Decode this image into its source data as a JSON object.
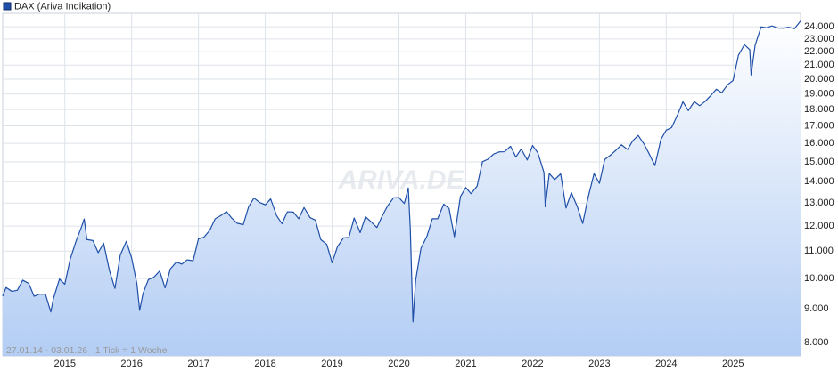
{
  "chart_data": {
    "type": "line",
    "legend": "DAX (Ariva Indikation)",
    "watermark": "ARIVA.DE",
    "footnote": "27.01.14 - 03.01.26   1 Tick = 1 Woche",
    "log_scale": true,
    "grid": true,
    "color": "#1f4fa8",
    "xlim": [
      2014.07,
      2026.01
    ],
    "xticks": [
      2015,
      2016,
      2017,
      2018,
      2019,
      2020,
      2021,
      2022,
      2023,
      2024,
      2025
    ],
    "ylim": [
      7640,
      25150
    ],
    "yticks": [
      {
        "value": 8000,
        "label": "8.000"
      },
      {
        "value": 9000,
        "label": "9.000"
      },
      {
        "value": 10000,
        "label": "10.000"
      },
      {
        "value": 11000,
        "label": "11.000"
      },
      {
        "value": 12000,
        "label": "12.000"
      },
      {
        "value": 13000,
        "label": "13.000"
      },
      {
        "value": 14000,
        "label": "14.000"
      },
      {
        "value": 15000,
        "label": "15.000"
      },
      {
        "value": 16000,
        "label": "16.000"
      },
      {
        "value": 17000,
        "label": "17.000"
      },
      {
        "value": 18000,
        "label": "18.000"
      },
      {
        "value": 19000,
        "label": "19.000"
      },
      {
        "value": 20000,
        "label": "20.000"
      },
      {
        "value": 21000,
        "label": "21.000"
      },
      {
        "value": 22000,
        "label": "22.000"
      },
      {
        "value": 23000,
        "label": "23.000"
      },
      {
        "value": 24000,
        "label": "24.000"
      }
    ],
    "x": [
      2014.07,
      2014.12,
      2014.21,
      2014.29,
      2014.37,
      2014.46,
      2014.54,
      2014.62,
      2014.71,
      2014.79,
      2014.83,
      2014.92,
      2015.0,
      2015.08,
      2015.17,
      2015.25,
      2015.29,
      2015.33,
      2015.42,
      2015.5,
      2015.58,
      2015.67,
      2015.75,
      2015.83,
      2015.92,
      2016.0,
      2016.08,
      2016.12,
      2016.17,
      2016.25,
      2016.33,
      2016.42,
      2016.5,
      2016.58,
      2016.67,
      2016.75,
      2016.83,
      2016.92,
      2017.0,
      2017.08,
      2017.17,
      2017.25,
      2017.33,
      2017.42,
      2017.5,
      2017.58,
      2017.67,
      2017.75,
      2017.83,
      2017.92,
      2018.0,
      2018.08,
      2018.17,
      2018.25,
      2018.33,
      2018.42,
      2018.5,
      2018.58,
      2018.67,
      2018.75,
      2018.83,
      2018.92,
      2019.0,
      2019.08,
      2019.17,
      2019.25,
      2019.33,
      2019.42,
      2019.5,
      2019.58,
      2019.67,
      2019.75,
      2019.83,
      2019.92,
      2020.0,
      2020.08,
      2020.14,
      2020.17,
      2020.21,
      2020.25,
      2020.33,
      2020.42,
      2020.5,
      2020.58,
      2020.67,
      2020.75,
      2020.83,
      2020.92,
      2021.0,
      2021.08,
      2021.17,
      2021.25,
      2021.33,
      2021.42,
      2021.5,
      2021.58,
      2021.67,
      2021.75,
      2021.83,
      2021.92,
      2022.0,
      2022.08,
      2022.17,
      2022.19,
      2022.25,
      2022.33,
      2022.42,
      2022.5,
      2022.58,
      2022.67,
      2022.75,
      2022.83,
      2022.92,
      2023.0,
      2023.08,
      2023.17,
      2023.25,
      2023.33,
      2023.42,
      2023.5,
      2023.58,
      2023.67,
      2023.75,
      2023.83,
      2023.92,
      2024.0,
      2024.08,
      2024.17,
      2024.25,
      2024.33,
      2024.42,
      2024.5,
      2024.58,
      2024.67,
      2024.75,
      2024.83,
      2024.92,
      2025.0,
      2025.08,
      2025.17,
      2025.25,
      2025.27,
      2025.33,
      2025.42,
      2025.5,
      2025.58,
      2025.67,
      2025.75,
      2025.83,
      2025.92,
      2026.01
    ],
    "values": [
      9400,
      9690,
      9560,
      9600,
      9940,
      9830,
      9400,
      9470,
      9470,
      8900,
      9330,
      9980,
      9800,
      10690,
      11400,
      11970,
      12300,
      11450,
      11410,
      10940,
      11310,
      10260,
      9660,
      10850,
      11380,
      10740,
      9800,
      8950,
      9490,
      9960,
      10040,
      10260,
      9680,
      10340,
      10590,
      10510,
      10670,
      10640,
      11480,
      11540,
      11830,
      12310,
      12440,
      12620,
      12330,
      12120,
      12060,
      12830,
      13230,
      13020,
      12920,
      13190,
      12440,
      12100,
      12610,
      12600,
      12310,
      12800,
      12360,
      12250,
      11450,
      11260,
      10560,
      11170,
      11520,
      11530,
      12340,
      11730,
      12400,
      12190,
      11940,
      12430,
      12870,
      13240,
      13250,
      12980,
      13700,
      11890,
      8600,
      9940,
      11110,
      11590,
      12310,
      12310,
      12950,
      12760,
      11560,
      13290,
      13720,
      13430,
      13790,
      15010,
      15140,
      15420,
      15530,
      15540,
      15840,
      15260,
      15690,
      15100,
      15880,
      15470,
      14460,
      12830,
      14410,
      14100,
      14390,
      12780,
      13480,
      12830,
      12110,
      13250,
      14400,
      13920,
      15130,
      15370,
      15630,
      15920,
      15660,
      16150,
      16450,
      15950,
      15390,
      14810,
      16220,
      16750,
      16900,
      17680,
      18490,
      17930,
      18500,
      18240,
      18510,
      18910,
      19320,
      19080,
      19630,
      19910,
      21730,
      22550,
      22160,
      20300,
      22500,
      23990,
      23910,
      24070,
      23900,
      23880,
      23960,
      23840,
      24490
    ]
  }
}
